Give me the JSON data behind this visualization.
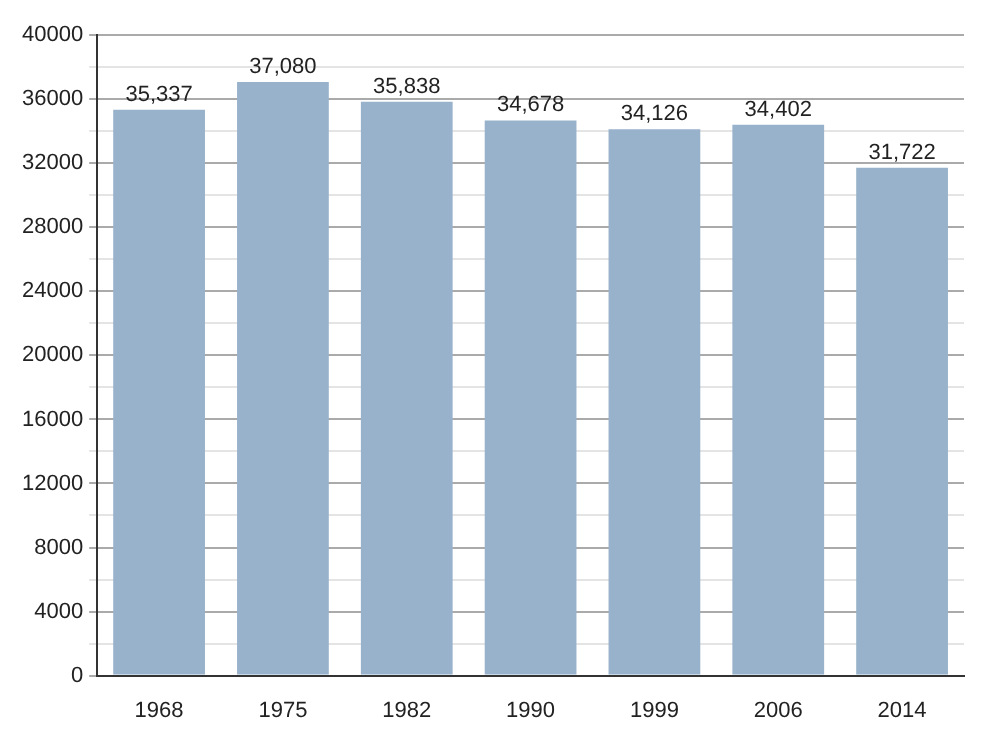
{
  "chart_data": {
    "type": "bar",
    "categories": [
      "1968",
      "1975",
      "1982",
      "1990",
      "1999",
      "2006",
      "2014"
    ],
    "values": [
      35337,
      37080,
      35838,
      34678,
      34126,
      34402,
      31722
    ],
    "value_labels": [
      "35,337",
      "37,080",
      "35,838",
      "34,678",
      "34,126",
      "34,402",
      "31,722"
    ],
    "color": "#98b2cb",
    "ylim": [
      0,
      40000
    ],
    "yticks": [
      0,
      {
        "value": 2000,
        "label": null
      },
      4000,
      {
        "value": 6000,
        "label": null
      },
      8000,
      {
        "value": 10000,
        "label": null
      },
      12000,
      {
        "value": 14000,
        "label": null
      },
      16000,
      {
        "value": 18000,
        "label": null
      },
      20000,
      {
        "value": 22000,
        "label": null
      },
      24000,
      {
        "value": 26000,
        "label": null
      },
      28000,
      {
        "value": 30000,
        "label": null
      },
      32000,
      {
        "value": 34000,
        "label": null
      },
      36000,
      {
        "value": 38000,
        "label": null
      },
      40000
    ],
    "grid": "y",
    "legend": false
  }
}
